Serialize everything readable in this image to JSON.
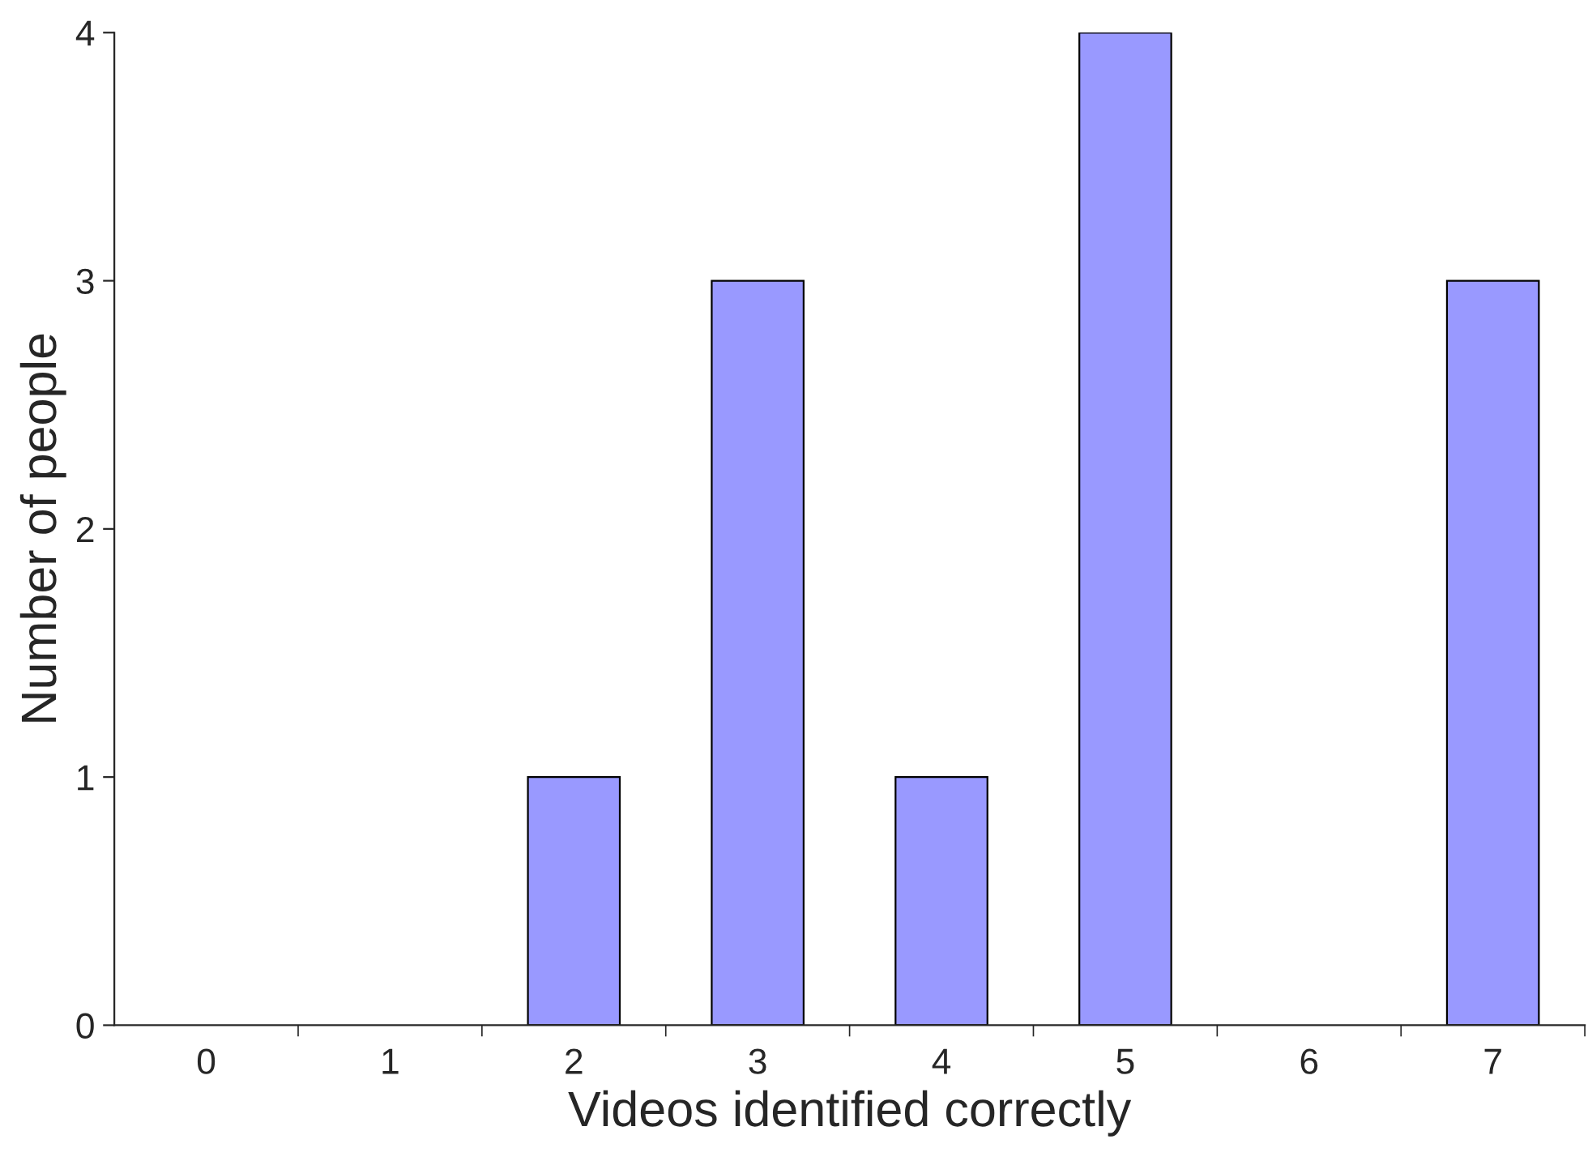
{
  "chart_data": {
    "type": "bar",
    "xlabel": "Videos identified correctly",
    "ylabel": "Number of people",
    "categories": [
      "0",
      "1",
      "2",
      "3",
      "4",
      "5",
      "6",
      "7"
    ],
    "values": [
      0,
      0,
      1,
      3,
      1,
      4,
      0,
      3
    ],
    "color": "#9999ff",
    "ylim": [
      0,
      4
    ],
    "yticks": [
      0,
      1,
      2,
      3,
      4
    ],
    "grid": false,
    "legend": false
  }
}
